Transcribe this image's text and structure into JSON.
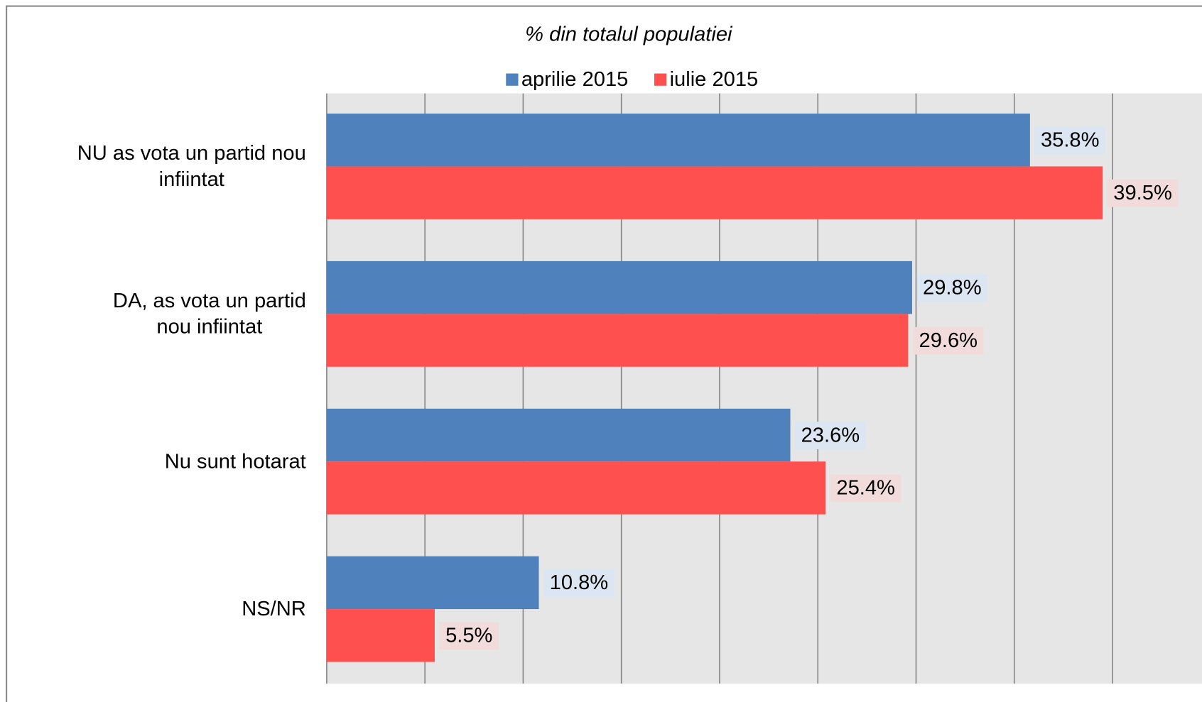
{
  "chart_data": {
    "type": "hbar",
    "title": "% din totalul populatiei",
    "categories": [
      "NU as vota un partid nou infiintat",
      "DA, as vota un partid nou infiintat",
      "Nu sunt hotarat",
      "NS/NR"
    ],
    "series": [
      {
        "name": "aprilie 2015",
        "color": "#4f81bd",
        "label_background": "#dce6f2",
        "values": [
          35.8,
          29.8,
          23.6,
          10.8
        ],
        "value_labels": [
          "35.8%",
          "29.8%",
          "23.6%",
          "10.8%"
        ]
      },
      {
        "name": "iulie 2015",
        "color": "#ff5050",
        "label_background": "#f2dcdb",
        "values": [
          39.5,
          29.6,
          25.4,
          5.5
        ],
        "value_labels": [
          "39.5%",
          "29.6%",
          "25.4%",
          "5.5%"
        ]
      }
    ],
    "xlim": [
      0,
      45
    ],
    "xticks": [
      0,
      5,
      10,
      15,
      20,
      25,
      30,
      35,
      40
    ],
    "grid": true,
    "legend": "top"
  }
}
